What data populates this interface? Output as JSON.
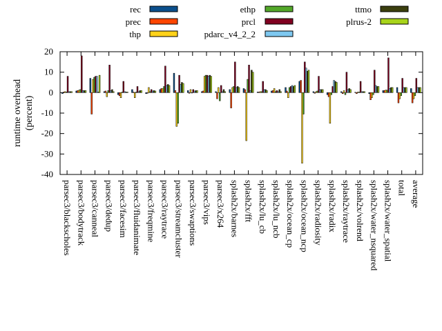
{
  "chart_data": {
    "type": "bar",
    "ylabel": [
      "runtime overhead",
      "(percent)"
    ],
    "ylim": [
      -40,
      20
    ],
    "yticks": [
      -40,
      -30,
      -20,
      -10,
      0,
      10,
      20
    ],
    "ytick_labels": [
      "-40",
      "-30",
      "-20",
      "-10",
      "0",
      "10",
      "20"
    ],
    "grid": false,
    "legend_position": "top",
    "categories": [
      "parsec3/blackscholes",
      "parsec3/bodytrack",
      "parsec3/canneal",
      "parsec3/dedup",
      "parsec3/facesim",
      "parsec3/fluidanimate",
      "parsec3/freqmine",
      "parsec3/raytrace",
      "parsec3/streamcluster",
      "parsec3/swaptions",
      "parsec3/vips",
      "parsec3/x264",
      "splash2x/barnes",
      "splash2x/fft",
      "splash2x/lu_cb",
      "splash2x/lu_ncb",
      "splash2x/ocean_cp",
      "splash2x/ocean_ncp",
      "splash2x/radiosity",
      "splash2x/radix",
      "splash2x/raytrace",
      "splash2x/volrend",
      "splash2x/water_nsquared",
      "splash2x/water_spatial",
      "total",
      "average"
    ],
    "series": [
      {
        "name": "rec",
        "color": "#0b4f8c",
        "values": [
          -0.5,
          0.8,
          7.0,
          0.5,
          -1.0,
          1.5,
          -0.5,
          1.5,
          9.5,
          1.0,
          0.5,
          0.5,
          1.5,
          2.0,
          0.3,
          0.8,
          2.5,
          5.5,
          0.5,
          -1.0,
          0.5,
          0.2,
          -0.5,
          1.0,
          2.5,
          2.0
        ]
      },
      {
        "name": "prec",
        "color": "#ff4500",
        "values": [
          0.3,
          1.0,
          -10.5,
          0.8,
          -1.5,
          0.3,
          -0.3,
          2.0,
          1.0,
          -0.3,
          0.8,
          -3.0,
          -7.5,
          1.5,
          0.3,
          1.0,
          0.8,
          6.0,
          -0.3,
          -2.0,
          -0.5,
          -0.5,
          -3.5,
          1.0,
          -5.0,
          -5.0
        ]
      },
      {
        "name": "thp",
        "color": "#ffd21a",
        "values": [
          0.5,
          1.2,
          6.5,
          -2.0,
          -2.5,
          -2.5,
          2.5,
          2.0,
          -16.5,
          1.5,
          8.0,
          2.5,
          2.5,
          -23.5,
          0.5,
          2.0,
          -2.5,
          -34.5,
          0.5,
          -15.0,
          1.0,
          0.3,
          -2.5,
          1.3,
          -3.0,
          -3.0
        ]
      },
      {
        "name": "ethp",
        "color": "#53a829",
        "values": [
          0.3,
          1.5,
          7.5,
          1.0,
          0.3,
          0.3,
          0.5,
          3.0,
          -15.0,
          -0.2,
          8.5,
          -4.0,
          3.0,
          6.5,
          0.5,
          0.5,
          2.5,
          -10.5,
          0.8,
          -1.0,
          -1.0,
          0.3,
          -1.0,
          1.2,
          -1.5,
          -1.5
        ]
      },
      {
        "name": "prcl",
        "color": "#800020",
        "values": [
          8.0,
          18.0,
          8.0,
          13.5,
          5.5,
          3.0,
          1.5,
          13.0,
          8.5,
          1.5,
          8.5,
          3.5,
          15.0,
          13.5,
          5.5,
          1.0,
          3.0,
          15.0,
          8.0,
          3.0,
          10.0,
          5.5,
          11.0,
          17.0,
          7.0,
          7.0
        ]
      },
      {
        "name": "pdarc_v4_2_2",
        "color": "#7ec8f0",
        "values": [
          0.5,
          1.0,
          8.0,
          1.0,
          0.5,
          0.5,
          0.8,
          3.5,
          4.0,
          0.8,
          8.0,
          0.5,
          2.5,
          1.0,
          1.5,
          0.5,
          3.5,
          12.0,
          1.5,
          6.0,
          1.5,
          0.5,
          3.5,
          2.0,
          2.5,
          2.5
        ]
      },
      {
        "name": "ttmo",
        "color": "#3b3f0e",
        "values": [
          0.5,
          1.0,
          0.3,
          1.5,
          0.3,
          1.0,
          1.0,
          4.0,
          5.0,
          1.0,
          8.5,
          1.5,
          3.0,
          11.0,
          1.5,
          1.5,
          3.0,
          10.5,
          1.5,
          5.5,
          2.0,
          0.5,
          3.0,
          2.5,
          2.5,
          2.5
        ]
      },
      {
        "name": "plrus-2",
        "color": "#a8d41a",
        "values": [
          0.5,
          1.0,
          8.5,
          0.5,
          0.3,
          1.0,
          0.8,
          3.5,
          4.5,
          1.0,
          8.0,
          0.5,
          2.5,
          10.0,
          1.0,
          0.5,
          3.5,
          11.0,
          1.5,
          5.0,
          1.5,
          0.5,
          3.0,
          2.5,
          2.5,
          2.5
        ]
      }
    ]
  }
}
